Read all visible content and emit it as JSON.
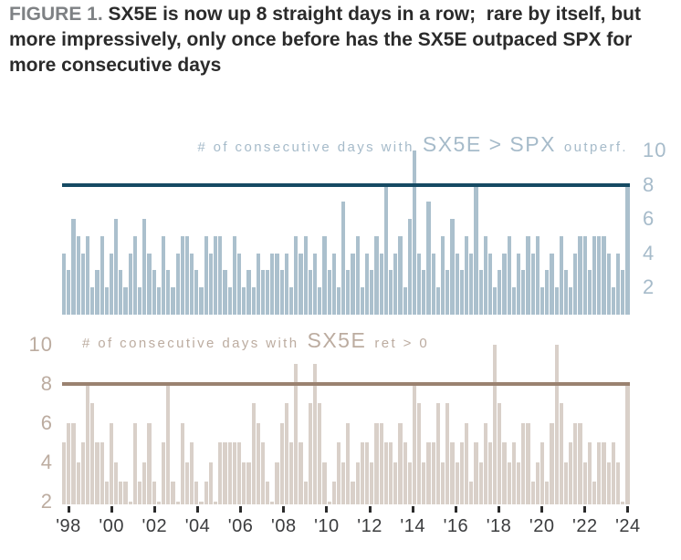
{
  "figure": {
    "label": "FIGURE 1.",
    "title": "SX5E is now up 8 straight days in a row;  rare by itself, but more impressively, only once before has the SX5E outpaced SPX for more consecutive days"
  },
  "x_axis": {
    "labels": [
      "'98",
      "'00",
      "'02",
      "'04",
      "'06",
      "'08",
      "'10",
      "'12",
      "'14",
      "'16",
      "'18",
      "'20",
      "'22",
      "'24"
    ],
    "label_color": "#3b3c3e",
    "tick_color": "#2b2b2b"
  },
  "chart_data": [
    {
      "type": "bar",
      "title": "# of consecutive days with SX5E > SPX outperf.",
      "title_prefix": "# of consecutive days with",
      "title_main": "SX5E > SPX",
      "title_suffix": "outperf.",
      "ylabel": "",
      "xlabel": "",
      "axis_side": "right",
      "y_ticks": [
        10,
        8,
        6,
        4,
        2
      ],
      "ref_line_value": 8,
      "ylim": [
        0.4,
        10.8
      ],
      "legend": "none",
      "grid": "off",
      "bar_color": "#abc0cd",
      "ref_line_color": "#164a63",
      "label_color": "#a6bbca",
      "x_range_years": [
        1998,
        2024
      ],
      "values": [
        4,
        3,
        6,
        5,
        4,
        5,
        2,
        3,
        5,
        2,
        4,
        6,
        3,
        2,
        4,
        5,
        2,
        6,
        4,
        3,
        2,
        5,
        3,
        2,
        4,
        5,
        5,
        4,
        3,
        2,
        5,
        4,
        5,
        5,
        3,
        2,
        5,
        4,
        2,
        3,
        2,
        4,
        3,
        3,
        4,
        4,
        3,
        4,
        2,
        5,
        4,
        5,
        3,
        4,
        2,
        5,
        3,
        4,
        2,
        7,
        3,
        4,
        5,
        2,
        4,
        3,
        5,
        4,
        8,
        3,
        4,
        5,
        2,
        6,
        10,
        4,
        3,
        7,
        4,
        2,
        5,
        3,
        6,
        4,
        3,
        5,
        4,
        8,
        3,
        5,
        4,
        2,
        3,
        4,
        5,
        2,
        4,
        3,
        5,
        4,
        5,
        2,
        3,
        4,
        2,
        5,
        3,
        2,
        4,
        5,
        5,
        3,
        5,
        5,
        5,
        4,
        2,
        4,
        3,
        8
      ]
    },
    {
      "type": "bar",
      "title": "# of consecutive days with SX5E ret > 0",
      "title_prefix": "# of consecutive days with",
      "title_main": "SX5E",
      "title_suffix": "ret > 0",
      "ylabel": "",
      "xlabel": "",
      "axis_side": "left",
      "y_ticks": [
        10,
        8,
        6,
        4,
        2
      ],
      "ref_line_value": 8,
      "ylim": [
        1.84,
        10.84
      ],
      "legend": "none",
      "grid": "off",
      "bar_color": "#d9d0c9",
      "ref_line_color": "#9a8270",
      "label_color": "#bcaca0",
      "x_range_years": [
        1998,
        2024
      ],
      "values": [
        5,
        6,
        6,
        4,
        5,
        8,
        7,
        5,
        5,
        3,
        6,
        4,
        3,
        3,
        2,
        6,
        3,
        4,
        6,
        3,
        2,
        5,
        8,
        3,
        2,
        6,
        4,
        5,
        3,
        2,
        3,
        4,
        2,
        5,
        5,
        5,
        5,
        5,
        4,
        4,
        7,
        6,
        5,
        3,
        2,
        4,
        6,
        7,
        5,
        9,
        5,
        3,
        7,
        9,
        7,
        4,
        2,
        3,
        5,
        4,
        6,
        3,
        4,
        5,
        5,
        4,
        6,
        6,
        5,
        5,
        4,
        6,
        5,
        4,
        8,
        7,
        4,
        5,
        5,
        7,
        4,
        7,
        5,
        4,
        5,
        6,
        3,
        5,
        4,
        6,
        5,
        10,
        7,
        5,
        4,
        5,
        4,
        6,
        6,
        3,
        4,
        5,
        3,
        6,
        10,
        7,
        4,
        5,
        6,
        6,
        4,
        5,
        3,
        5,
        5,
        4,
        5,
        4,
        2,
        8
      ]
    }
  ]
}
